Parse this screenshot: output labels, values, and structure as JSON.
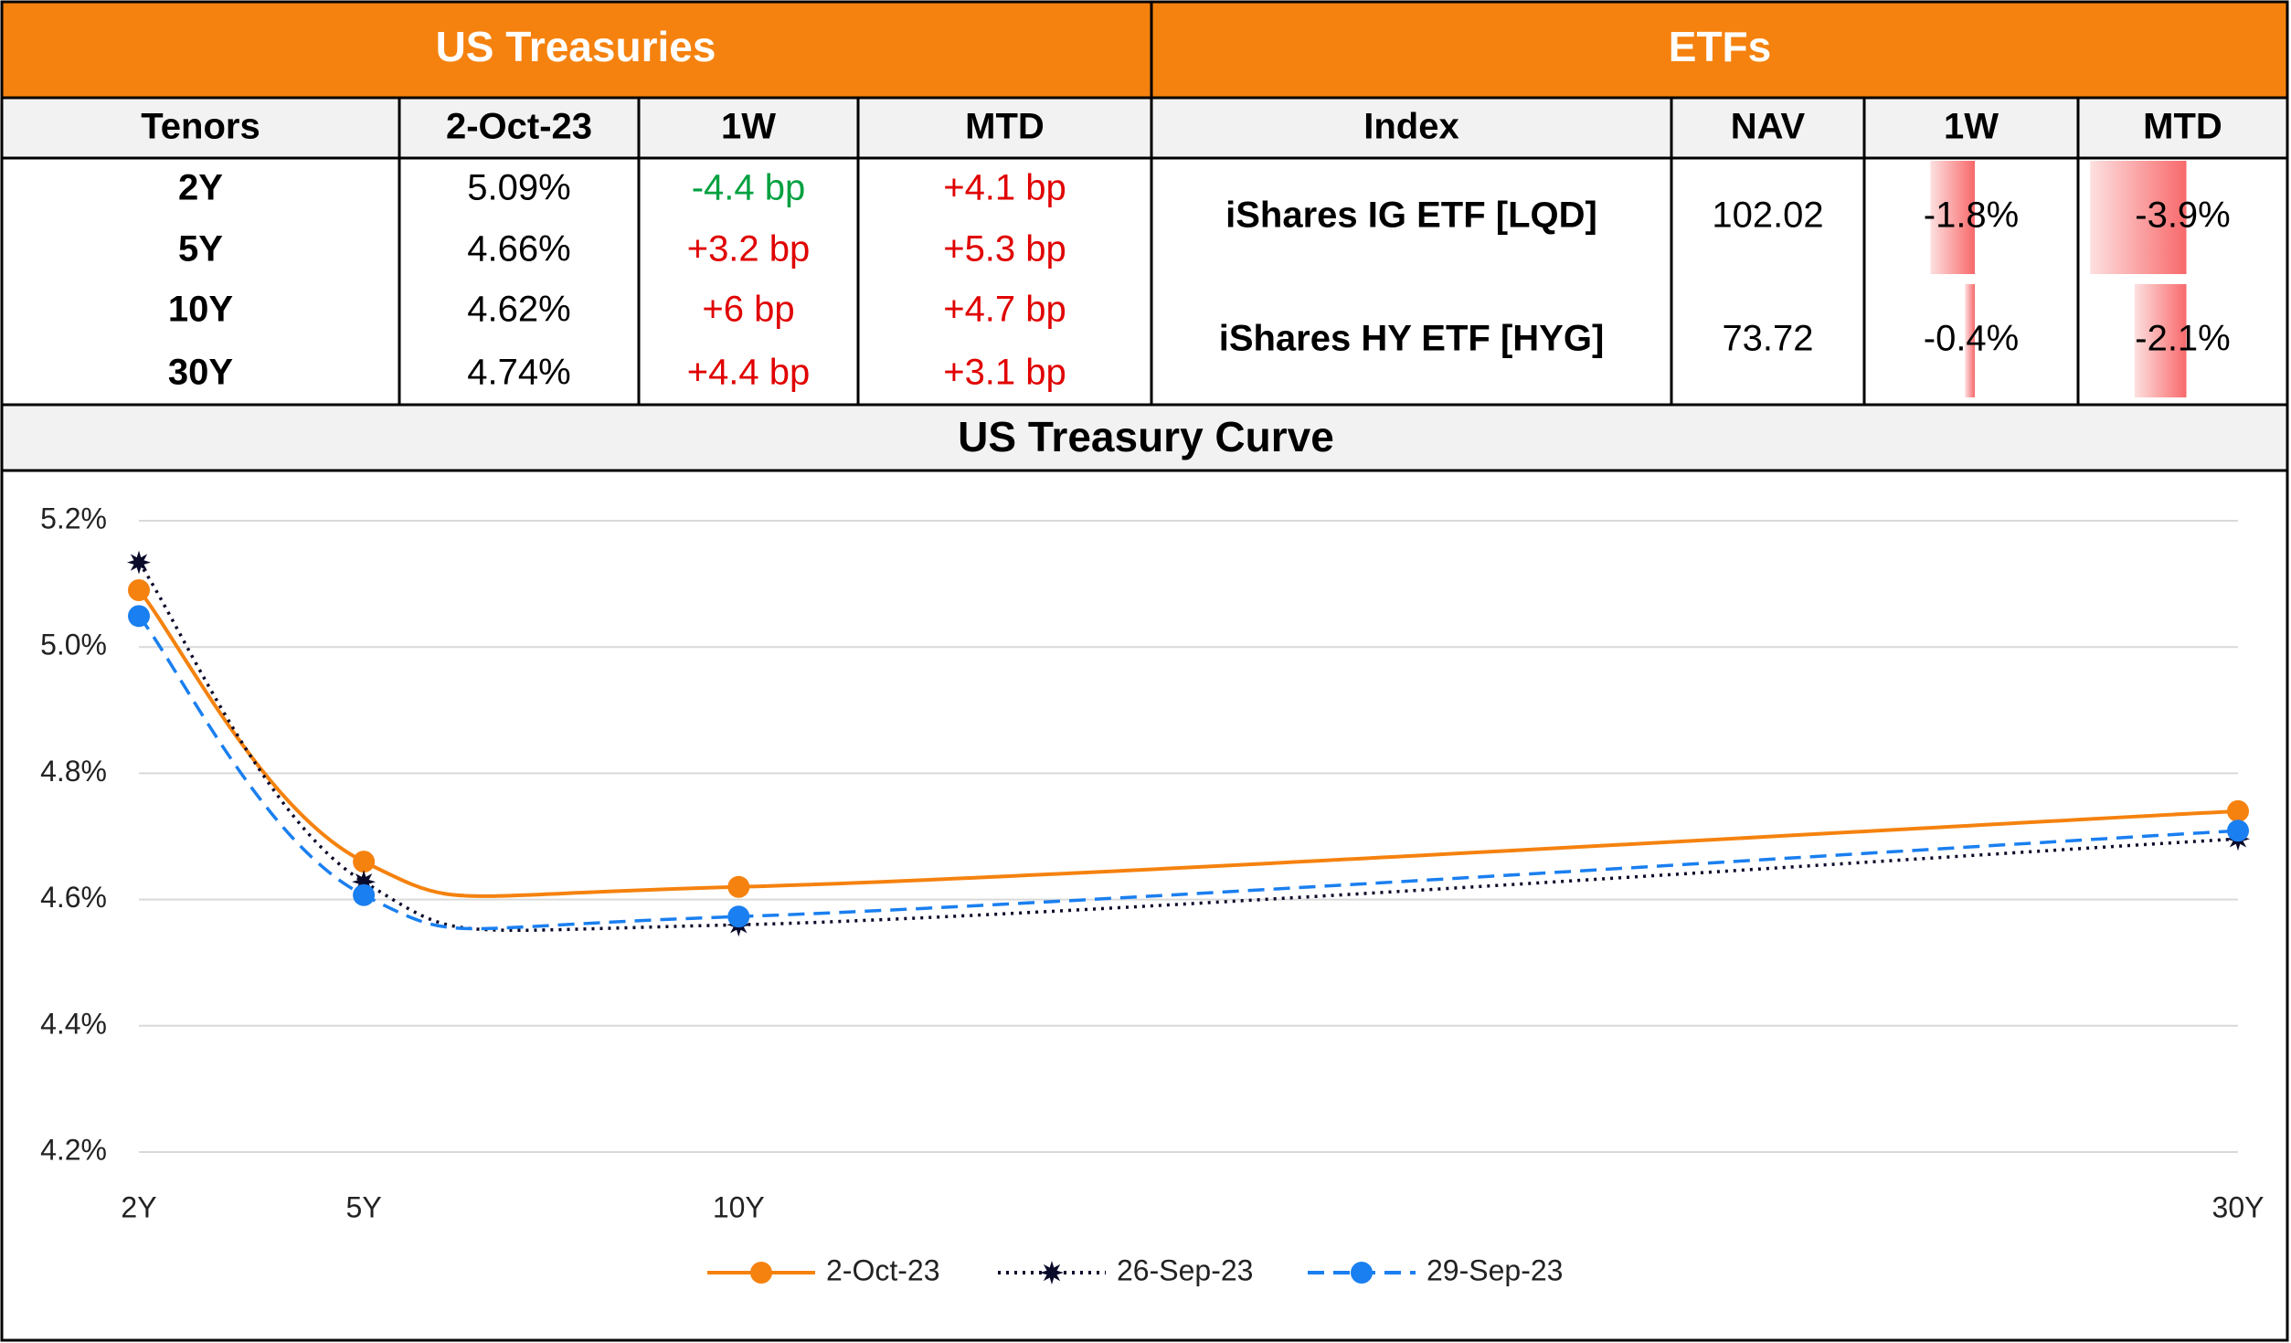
{
  "treasuries": {
    "title": "US Treasuries",
    "headers": [
      "Tenors",
      "2-Oct-23",
      "1W",
      "MTD"
    ],
    "rows": [
      [
        "2Y",
        "5.09%",
        "-4.4 bp",
        "+4.1 bp"
      ],
      [
        "5Y",
        "4.66%",
        "+3.2 bp",
        "+5.3 bp"
      ],
      [
        "10Y",
        "4.62%",
        "+6 bp",
        "+4.7 bp"
      ],
      [
        "30Y",
        "4.74%",
        "+4.4 bp",
        "+3.1 bp"
      ]
    ],
    "positive_color": "#e00000",
    "negative_color": "#00a040"
  },
  "etfs": {
    "title": "ETFs",
    "headers": [
      "Index",
      "NAV",
      "1W",
      "MTD"
    ],
    "index": [
      "iShares IG ETF [LQD]",
      "iShares HY ETF [HYG]"
    ],
    "nav": [
      "102.02",
      "73.72"
    ],
    "w1": {
      "values": [
        -1.8,
        -0.4
      ],
      "value_labels": [
        "-1.8%",
        "-0.4%"
      ]
    },
    "mtd": {
      "values": [
        -3.9,
        -2.1
      ],
      "value_labels": [
        "-3.9%",
        "-2.1%"
      ]
    },
    "bar_color": "#f8696b"
  },
  "chart_data": {
    "type": "line",
    "title": "US Treasury Curve",
    "x": [
      2,
      5,
      10,
      30
    ],
    "xlim": [
      2,
      30
    ],
    "xticks": [
      {
        "value": 2,
        "label": "2Y"
      },
      {
        "value": 5,
        "label": "5Y"
      },
      {
        "value": 10,
        "label": "10Y"
      },
      {
        "value": 30,
        "label": "30Y"
      }
    ],
    "ylim": [
      4.2,
      5.2
    ],
    "yticks": [
      {
        "value": 4.2,
        "label": "4.2%"
      },
      {
        "value": 4.4,
        "label": "4.4%"
      },
      {
        "value": 4.6,
        "label": "4.6%"
      },
      {
        "value": 4.8,
        "label": "4.8%"
      },
      {
        "value": 5.0,
        "label": "5.0%"
      },
      {
        "value": 5.2,
        "label": "5.2%"
      }
    ],
    "grid": true,
    "smooth": true,
    "legend": "bottom",
    "series": [
      {
        "name": "2-Oct-23",
        "color": "#f5820f",
        "dash": "solid",
        "values": [
          5.09,
          4.66,
          4.62,
          4.74
        ]
      },
      {
        "name": "26-Sep-23",
        "color": "#0a0a2a",
        "dash": "dotted",
        "values": [
          5.134,
          4.628,
          4.56,
          4.696
        ]
      },
      {
        "name": "29-Sep-23",
        "color": "#1a7ff0",
        "dash": "dashed",
        "values": [
          5.049,
          4.607,
          4.573,
          4.709
        ]
      }
    ]
  }
}
